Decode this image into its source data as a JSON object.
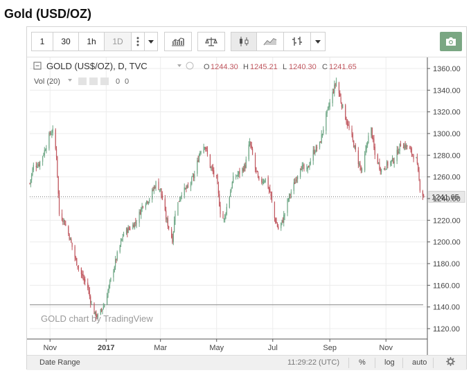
{
  "page": {
    "title": "Gold (USD/OZ)"
  },
  "toolbar": {
    "intervals": [
      "1",
      "30",
      "1h",
      "1D"
    ],
    "active_interval": "1D",
    "icons": [
      "more-vertical-icon",
      "dropdown-arrow-icon",
      "indicators-icon",
      "compare-icon",
      "candlestick-icon",
      "line-style-icon",
      "bar-style-icon",
      "dropdown-arrow-icon",
      "camera-icon"
    ]
  },
  "legend": {
    "symbol": "GOLD (US$/OZ), D, TVC",
    "open_label": "O",
    "open": "1244.30",
    "high_label": "H",
    "high": "1245.21",
    "low_label": "L",
    "low": "1240.30",
    "close_label": "C",
    "close": "1241.65",
    "vol_label": "Vol (20)",
    "vol_v1": "0",
    "vol_v2": "0"
  },
  "watermark": "GOLD chart by TradingView",
  "last_price_label": "1241.65",
  "bottom": {
    "date_range": "Date Range",
    "time": "11:29:22 (UTC)",
    "percent": "%",
    "log": "log",
    "auto": "auto"
  },
  "colors": {
    "up": "#6ba583",
    "down": "#c0565e",
    "camera_bg": "#7aa783",
    "price_label_bg": "#e8e8e8"
  },
  "chart_data": {
    "type": "candlestick",
    "title": "Gold (USD/OZ)",
    "y_ticks": [
      1120,
      1140,
      1160,
      1180,
      1200,
      1220,
      1240,
      1260,
      1280,
      1300,
      1320,
      1340,
      1360
    ],
    "y_tick_labels": [
      "1120.00",
      "1140.00",
      "1160.00",
      "1180.00",
      "1200.00",
      "1220.00",
      "1240.00",
      "1260.00",
      "1280.00",
      "1300.00",
      "1320.00",
      "1340.00",
      "1360.00"
    ],
    "ylim": [
      1112,
      1368
    ],
    "x_ticks": [
      {
        "label": "Nov",
        "date": "2016-11-01"
      },
      {
        "label": "2017",
        "date": "2017-01-01"
      },
      {
        "label": "Mar",
        "date": "2017-03-01"
      },
      {
        "label": "May",
        "date": "2017-05-01"
      },
      {
        "label": "Jul",
        "date": "2017-07-01"
      },
      {
        "label": "Sep",
        "date": "2017-09-01"
      },
      {
        "label": "Nov",
        "date": "2017-11-01"
      }
    ],
    "x_start": "2016-10-10",
    "x_end": "2017-12-16",
    "last_close": 1241.65,
    "reference_line": 1142,
    "close_path": [
      [
        "2016-10-10",
        1254
      ],
      [
        "2016-10-14",
        1270
      ],
      [
        "2016-10-20",
        1272
      ],
      [
        "2016-10-26",
        1284
      ],
      [
        "2016-11-01",
        1300
      ],
      [
        "2016-11-04",
        1302
      ],
      [
        "2016-11-08",
        1280
      ],
      [
        "2016-11-11",
        1226
      ],
      [
        "2016-11-16",
        1220
      ],
      [
        "2016-11-22",
        1205
      ],
      [
        "2016-11-29",
        1183
      ],
      [
        "2016-12-06",
        1168
      ],
      [
        "2016-12-12",
        1158
      ],
      [
        "2016-12-16",
        1142
      ],
      [
        "2016-12-20",
        1133
      ],
      [
        "2016-12-23",
        1131
      ],
      [
        "2016-12-30",
        1142
      ],
      [
        "2017-01-06",
        1165
      ],
      [
        "2017-01-13",
        1188
      ],
      [
        "2017-01-20",
        1208
      ],
      [
        "2017-01-27",
        1213
      ],
      [
        "2017-02-03",
        1219
      ],
      [
        "2017-02-10",
        1235
      ],
      [
        "2017-02-17",
        1240
      ],
      [
        "2017-02-24",
        1254
      ],
      [
        "2017-03-01",
        1248
      ],
      [
        "2017-03-07",
        1222
      ],
      [
        "2017-03-14",
        1202
      ],
      [
        "2017-03-17",
        1228
      ],
      [
        "2017-03-24",
        1246
      ],
      [
        "2017-03-31",
        1250
      ],
      [
        "2017-04-07",
        1262
      ],
      [
        "2017-04-13",
        1284
      ],
      [
        "2017-04-18",
        1290
      ],
      [
        "2017-04-24",
        1270
      ],
      [
        "2017-05-01",
        1258
      ],
      [
        "2017-05-05",
        1228
      ],
      [
        "2017-05-09",
        1220
      ],
      [
        "2017-05-12",
        1232
      ],
      [
        "2017-05-19",
        1258
      ],
      [
        "2017-05-26",
        1264
      ],
      [
        "2017-06-01",
        1270
      ],
      [
        "2017-06-06",
        1292
      ],
      [
        "2017-06-12",
        1268
      ],
      [
        "2017-06-16",
        1255
      ],
      [
        "2017-06-23",
        1258
      ],
      [
        "2017-06-28",
        1246
      ],
      [
        "2017-07-03",
        1222
      ],
      [
        "2017-07-07",
        1212
      ],
      [
        "2017-07-12",
        1220
      ],
      [
        "2017-07-18",
        1240
      ],
      [
        "2017-07-25",
        1255
      ],
      [
        "2017-07-31",
        1270
      ],
      [
        "2017-08-07",
        1265
      ],
      [
        "2017-08-14",
        1283
      ],
      [
        "2017-08-21",
        1290
      ],
      [
        "2017-08-28",
        1316
      ],
      [
        "2017-09-05",
        1340
      ],
      [
        "2017-09-08",
        1348
      ],
      [
        "2017-09-13",
        1330
      ],
      [
        "2017-09-19",
        1312
      ],
      [
        "2017-09-25",
        1296
      ],
      [
        "2017-10-02",
        1274
      ],
      [
        "2017-10-06",
        1264
      ],
      [
        "2017-10-12",
        1294
      ],
      [
        "2017-10-16",
        1304
      ],
      [
        "2017-10-20",
        1280
      ],
      [
        "2017-10-27",
        1266
      ],
      [
        "2017-11-03",
        1272
      ],
      [
        "2017-11-10",
        1276
      ],
      [
        "2017-11-17",
        1290
      ],
      [
        "2017-11-24",
        1288
      ],
      [
        "2017-11-29",
        1282
      ],
      [
        "2017-12-04",
        1276
      ],
      [
        "2017-12-08",
        1250
      ],
      [
        "2017-12-12",
        1241.65
      ]
    ]
  }
}
